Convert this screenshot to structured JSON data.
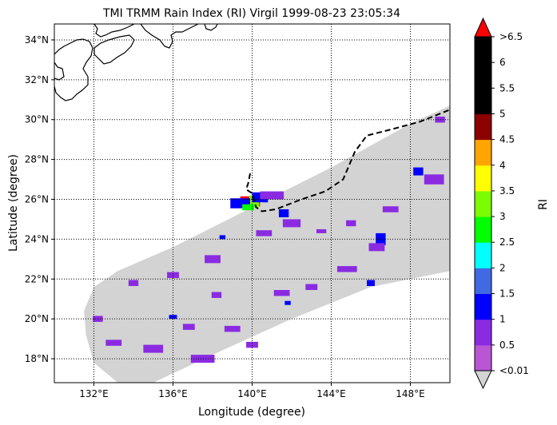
{
  "chart_data": {
    "type": "heatmap",
    "title": "TMI TRMM Rain Index (RI) Virgil 1999-08-23 23:05:34",
    "xlabel": "Longitude (degree)",
    "ylabel": "Latitude (degree)",
    "xlim": [
      130.0,
      150.0
    ],
    "ylim": [
      16.8,
      34.8
    ],
    "xticks": [
      {
        "value": 132,
        "label": "132°E"
      },
      {
        "value": 136,
        "label": "136°E"
      },
      {
        "value": 140,
        "label": "140°E"
      },
      {
        "value": 144,
        "label": "144°E"
      },
      {
        "value": 148,
        "label": "148°E"
      }
    ],
    "yticks": [
      {
        "value": 18,
        "label": "18°N"
      },
      {
        "value": 20,
        "label": "20°N"
      },
      {
        "value": 22,
        "label": "22°N"
      },
      {
        "value": 24,
        "label": "24°N"
      },
      {
        "value": 26,
        "label": "26°N"
      },
      {
        "value": 28,
        "label": "28°N"
      },
      {
        "value": 30,
        "label": "30°N"
      },
      {
        "value": 32,
        "label": "32°N"
      },
      {
        "value": 34,
        "label": "34°N"
      }
    ],
    "grid": true,
    "grid_style": "dotted",
    "swath_color": "#d3d3d3",
    "swath_outline": [
      [
        131.5,
        20.4
      ],
      [
        132.0,
        21.6
      ],
      [
        133.2,
        22.4
      ],
      [
        136.0,
        23.6
      ],
      [
        139.0,
        25.1
      ],
      [
        144.0,
        27.6
      ],
      [
        148.0,
        29.8
      ],
      [
        150.0,
        30.7
      ],
      [
        150.0,
        22.4
      ],
      [
        146.0,
        21.6
      ],
      [
        142.0,
        20.0
      ],
      [
        138.0,
        18.2
      ],
      [
        135.0,
        16.8
      ],
      [
        133.2,
        16.8
      ],
      [
        132.0,
        17.8
      ],
      [
        131.6,
        19.2
      ]
    ],
    "colorbar": {
      "label": "RI",
      "bounds": [
        0.01,
        0.5,
        1,
        1.5,
        2,
        2.5,
        3,
        3.5,
        4,
        4.5,
        5,
        5.5,
        6,
        6.5
      ],
      "tick_labels": [
        "<0.01",
        "0.5",
        "1",
        "1.5",
        "2",
        "2.5",
        "3",
        "3.5",
        "4",
        "4.5",
        "5",
        "5.5",
        "6",
        ">6.5"
      ],
      "colors": [
        "#ba55d3",
        "#8a2be2",
        "#0000ff",
        "#4169e1",
        "#00ffff",
        "#00ff00",
        "#7cfc00",
        "#ffff00",
        "#ffa500",
        "#8b0000",
        "#000000",
        "#000000",
        "#000000"
      ],
      "under_color": "#d3d3d3",
      "over_color": "#ff0000",
      "extend": "both"
    },
    "track": [
      [
        139.9,
        27.3
      ],
      [
        139.8,
        26.8
      ],
      [
        139.7,
        26.5
      ],
      [
        140.0,
        26.3
      ],
      [
        140.2,
        25.6
      ],
      [
        140.5,
        25.4
      ],
      [
        141.2,
        25.5
      ],
      [
        142.5,
        26.0
      ],
      [
        143.7,
        26.4
      ],
      [
        144.6,
        27.0
      ],
      [
        145.2,
        28.4
      ],
      [
        145.8,
        29.2
      ],
      [
        147.0,
        29.5
      ],
      [
        148.5,
        29.9
      ],
      [
        150.0,
        30.5
      ]
    ],
    "storm_center": [
      139.8,
      25.9
    ],
    "rain_cells": [
      {
        "lon": 139.9,
        "lat": 25.9,
        "ri": 6.8,
        "w": 1.0,
        "h": 0.5
      },
      {
        "lon": 140.1,
        "lat": 25.9,
        "ri": 3.2,
        "w": 0.5,
        "h": 0.6
      },
      {
        "lon": 139.4,
        "lat": 25.8,
        "ri": 1.2,
        "w": 1.0,
        "h": 0.5
      },
      {
        "lon": 140.4,
        "lat": 26.1,
        "ri": 1.2,
        "w": 0.8,
        "h": 0.5
      },
      {
        "lon": 139.8,
        "lat": 25.6,
        "ri": 2.6,
        "w": 0.6,
        "h": 0.3
      },
      {
        "lon": 141.0,
        "lat": 26.2,
        "ri": 0.8,
        "w": 1.2,
        "h": 0.4
      },
      {
        "lon": 142.0,
        "lat": 24.8,
        "ri": 0.6,
        "w": 0.9,
        "h": 0.4
      },
      {
        "lon": 141.6,
        "lat": 25.3,
        "ri": 1.2,
        "w": 0.5,
        "h": 0.4
      },
      {
        "lon": 140.6,
        "lat": 24.3,
        "ri": 0.6,
        "w": 0.8,
        "h": 0.3
      },
      {
        "lon": 146.5,
        "lat": 24.0,
        "ri": 1.2,
        "w": 0.5,
        "h": 0.6
      },
      {
        "lon": 146.3,
        "lat": 23.6,
        "ri": 0.6,
        "w": 0.8,
        "h": 0.4
      },
      {
        "lon": 148.4,
        "lat": 27.4,
        "ri": 1.2,
        "w": 0.5,
        "h": 0.4
      },
      {
        "lon": 149.2,
        "lat": 27.0,
        "ri": 0.6,
        "w": 1.0,
        "h": 0.5
      },
      {
        "lon": 145.0,
        "lat": 24.8,
        "ri": 0.6,
        "w": 0.5,
        "h": 0.3
      },
      {
        "lon": 144.8,
        "lat": 22.5,
        "ri": 0.6,
        "w": 1.0,
        "h": 0.3
      },
      {
        "lon": 143.0,
        "lat": 21.6,
        "ri": 0.6,
        "w": 0.6,
        "h": 0.3
      },
      {
        "lon": 141.5,
        "lat": 21.3,
        "ri": 0.6,
        "w": 0.8,
        "h": 0.3
      },
      {
        "lon": 141.8,
        "lat": 20.8,
        "ri": 1.2,
        "w": 0.3,
        "h": 0.2
      },
      {
        "lon": 138.0,
        "lat": 23.0,
        "ri": 0.6,
        "w": 0.8,
        "h": 0.4
      },
      {
        "lon": 136.0,
        "lat": 22.2,
        "ri": 0.6,
        "w": 0.6,
        "h": 0.3
      },
      {
        "lon": 134.0,
        "lat": 21.8,
        "ri": 0.6,
        "w": 0.5,
        "h": 0.3
      },
      {
        "lon": 133.0,
        "lat": 18.8,
        "ri": 0.6,
        "w": 0.8,
        "h": 0.3
      },
      {
        "lon": 136.0,
        "lat": 20.1,
        "ri": 1.2,
        "w": 0.4,
        "h": 0.2
      },
      {
        "lon": 135.0,
        "lat": 18.5,
        "ri": 0.6,
        "w": 1.0,
        "h": 0.4
      },
      {
        "lon": 137.5,
        "lat": 18.0,
        "ri": 0.6,
        "w": 1.2,
        "h": 0.4
      },
      {
        "lon": 139.0,
        "lat": 19.5,
        "ri": 0.6,
        "w": 0.8,
        "h": 0.3
      },
      {
        "lon": 140.0,
        "lat": 18.7,
        "ri": 0.6,
        "w": 0.6,
        "h": 0.3
      },
      {
        "lon": 138.2,
        "lat": 21.2,
        "ri": 0.6,
        "w": 0.5,
        "h": 0.3
      },
      {
        "lon": 146.0,
        "lat": 21.8,
        "ri": 1.2,
        "w": 0.4,
        "h": 0.3
      },
      {
        "lon": 147.0,
        "lat": 25.5,
        "ri": 0.6,
        "w": 0.8,
        "h": 0.3
      },
      {
        "lon": 149.5,
        "lat": 30.0,
        "ri": 0.6,
        "w": 0.5,
        "h": 0.3
      },
      {
        "lon": 143.5,
        "lat": 24.4,
        "ri": 0.6,
        "w": 0.5,
        "h": 0.2
      },
      {
        "lon": 138.5,
        "lat": 24.1,
        "ri": 1.2,
        "w": 0.3,
        "h": 0.2
      },
      {
        "lon": 132.2,
        "lat": 20.0,
        "ri": 0.6,
        "w": 0.5,
        "h": 0.3
      },
      {
        "lon": 136.8,
        "lat": 19.6,
        "ri": 0.6,
        "w": 0.6,
        "h": 0.3
      }
    ],
    "land_color": "#ffffff",
    "coast_color": "#000000"
  }
}
